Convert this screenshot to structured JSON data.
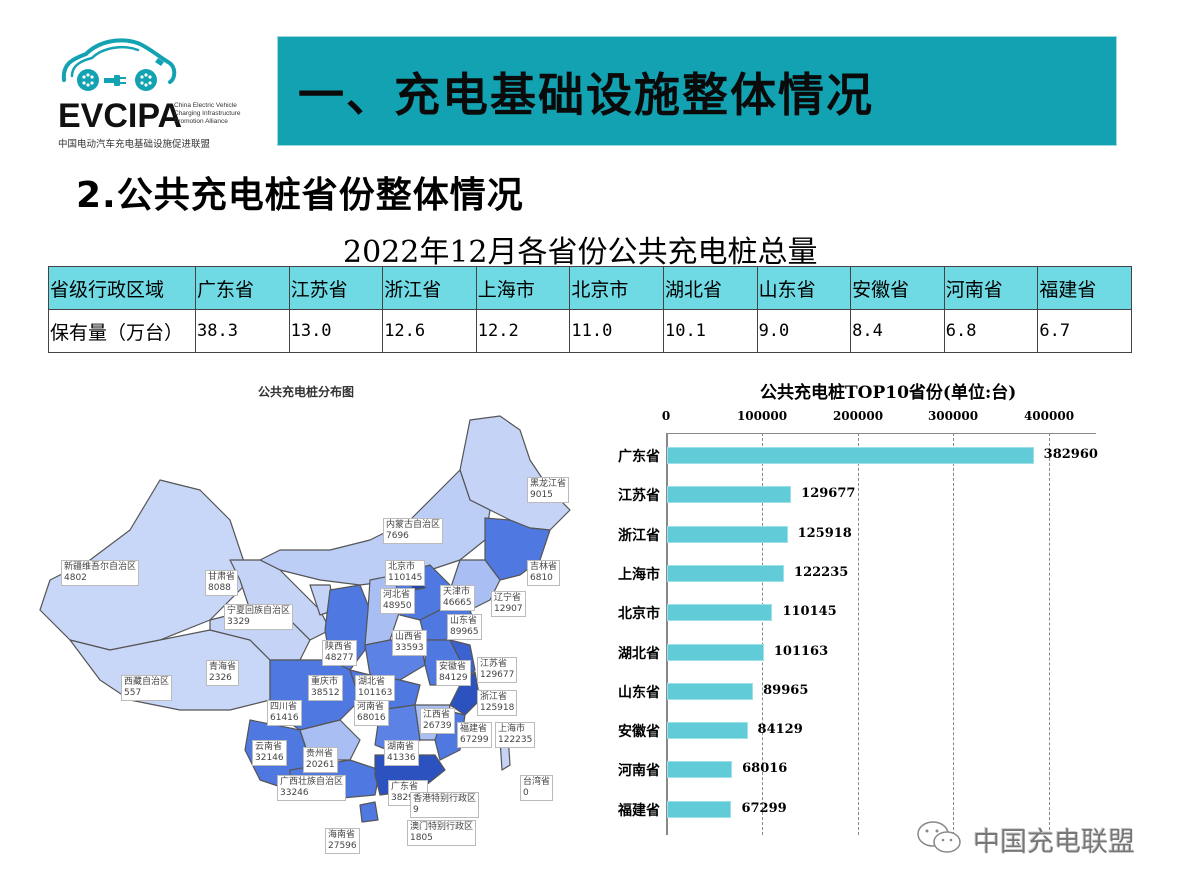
{
  "header": {
    "logo": {
      "mark": "EVCIPA",
      "english_lines": [
        "China Electric Vehicle",
        "Charging Infrastructure",
        "Promotion Alliance"
      ],
      "chinese_name": "中国电动汽车充电基础设施促进联盟",
      "color": "#12a2b2"
    },
    "banner_title": "一、充电基础设施整体情况",
    "banner_color": "#12a2b2"
  },
  "section_title": "2.公共充电桩省份整体情况",
  "table": {
    "caption": "2022年12月各省份公共充电桩总量",
    "header_color": "#6fdae4",
    "row_header": "省级行政区域",
    "row_values_label": "保有量（万台）",
    "provinces": [
      "广东省",
      "江苏省",
      "浙江省",
      "上海市",
      "北京市",
      "湖北省",
      "山东省",
      "安徽省",
      "河南省",
      "福建省"
    ],
    "values": [
      "38.3",
      "13.0",
      "12.6",
      "12.2",
      "11.0",
      "10.1",
      "9.0",
      "8.4",
      "6.8",
      "6.7"
    ]
  },
  "map": {
    "title": "公共充电桩分布图",
    "labels": [
      {
        "name": "黑龙江省",
        "value": "9015"
      },
      {
        "name": "内蒙古自治区",
        "value": "7696"
      },
      {
        "name": "新疆维吾尔自治区",
        "value": "4802"
      },
      {
        "name": "甘肃省",
        "value": "8088"
      },
      {
        "name": "吉林省",
        "value": "6810"
      },
      {
        "name": "北京市",
        "value": "110145"
      },
      {
        "name": "天津市",
        "value": "46665"
      },
      {
        "name": "辽宁省",
        "value": "12907"
      },
      {
        "name": "河北省",
        "value": "48950"
      },
      {
        "name": "宁夏回族自治区",
        "value": "3329"
      },
      {
        "name": "山东省",
        "value": "89965"
      },
      {
        "name": "山西省",
        "value": "33593"
      },
      {
        "name": "陕西省",
        "value": "48277"
      },
      {
        "name": "青海省",
        "value": "2326"
      },
      {
        "name": "安徽省",
        "value": "84129"
      },
      {
        "name": "江苏省",
        "value": "129677"
      },
      {
        "name": "西藏自治区",
        "value": "557"
      },
      {
        "name": "重庆市",
        "value": "38512"
      },
      {
        "name": "湖北省",
        "value": "101163"
      },
      {
        "name": "浙江省",
        "value": "125918"
      },
      {
        "name": "四川省",
        "value": "61416"
      },
      {
        "name": "河南省",
        "value": "68016"
      },
      {
        "name": "江西省",
        "value": "26739"
      },
      {
        "name": "上海市",
        "value": "122235"
      },
      {
        "name": "福建省",
        "value": "67299"
      },
      {
        "name": "云南省",
        "value": "32146"
      },
      {
        "name": "贵州省",
        "value": "20261"
      },
      {
        "name": "湖南省",
        "value": "41336"
      },
      {
        "name": "广西壮族自治区",
        "value": "33246"
      },
      {
        "name": "广东省",
        "value": "382960"
      },
      {
        "name": "台湾省",
        "value": "0"
      },
      {
        "name": "香港特别行政区",
        "value": "9"
      },
      {
        "name": "澳门特别行政区",
        "value": "1805"
      },
      {
        "name": "海南省",
        "value": "27596"
      }
    ]
  },
  "chart_data": {
    "type": "bar",
    "orientation": "horizontal",
    "title": "公共充电桩TOP10省份(单位:台)",
    "categories": [
      "广东省",
      "江苏省",
      "浙江省",
      "上海市",
      "北京市",
      "湖北省",
      "山东省",
      "安徽省",
      "河南省",
      "福建省"
    ],
    "values": [
      382960,
      129677,
      125918,
      122235,
      110145,
      101163,
      89965,
      84129,
      68016,
      67299
    ],
    "value_labels": [
      "382960",
      "129677",
      "125918",
      "122235",
      "110145",
      "101163",
      "89965",
      "84129",
      "68016",
      "67299"
    ],
    "xlabel": "",
    "ylabel": "",
    "xlim": [
      0,
      450000
    ],
    "x_ticks": [
      "0",
      "100000",
      "200000",
      "300000",
      "400000"
    ],
    "x_axis_position": "top",
    "grid": "vertical dashed",
    "bar_color": "#62cbd8",
    "legend": "none"
  },
  "watermark": {
    "icon": "wechat-icon",
    "text": "中国充电联盟"
  }
}
